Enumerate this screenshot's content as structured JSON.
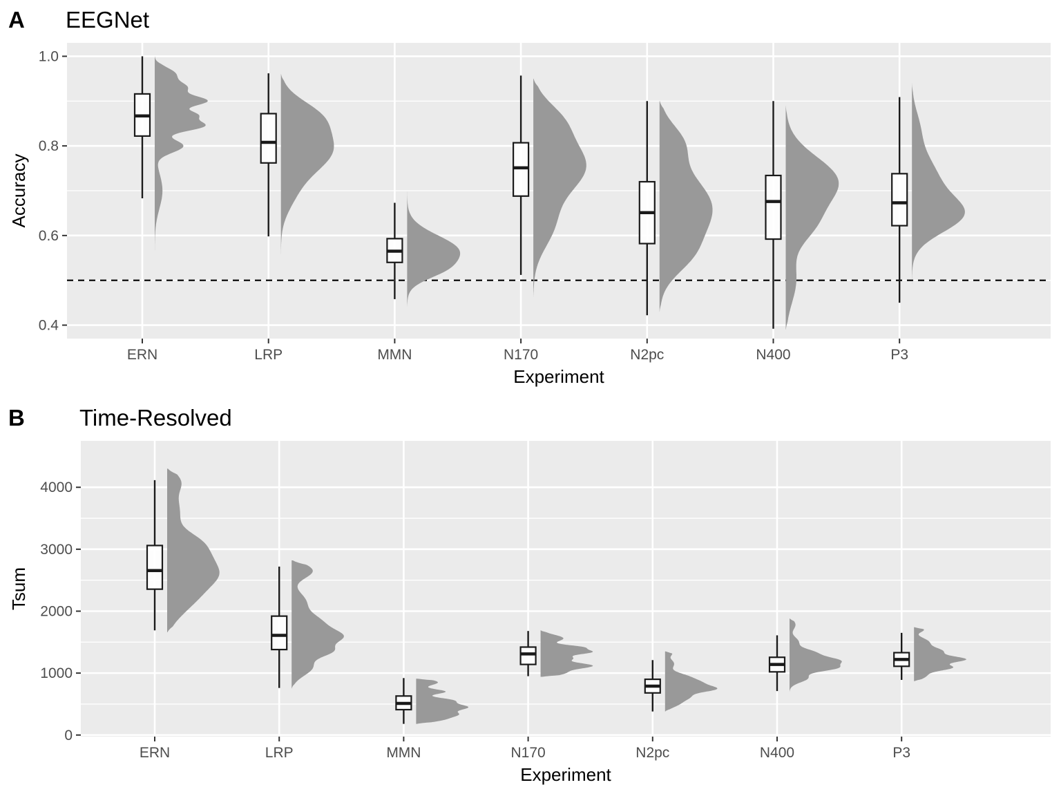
{
  "chart_data": [
    {
      "type": "box",
      "panel_label": "A",
      "title": "EEGNet",
      "xlabel": "Experiment",
      "ylabel": "Accuracy",
      "ylim": [
        0.37,
        1.03
      ],
      "yticks": [
        0.4,
        0.6,
        0.8,
        1.0
      ],
      "ytick_labels": [
        "0.4",
        "0.6",
        "0.8",
        "1.0"
      ],
      "reference_line": {
        "y": 0.5,
        "style": "dashed"
      },
      "grid": true,
      "categories": [
        "ERN",
        "LRP",
        "MMN",
        "N170",
        "N2pc",
        "N400",
        "P3"
      ],
      "boxes": [
        {
          "category": "ERN",
          "min": 0.683,
          "q1": 0.822,
          "median": 0.867,
          "q3": 0.916,
          "max": 1.0
        },
        {
          "category": "LRP",
          "min": 0.598,
          "q1": 0.762,
          "median": 0.808,
          "q3": 0.872,
          "max": 0.962
        },
        {
          "category": "MMN",
          "min": 0.458,
          "q1": 0.54,
          "median": 0.565,
          "q3": 0.593,
          "max": 0.673
        },
        {
          "category": "N170",
          "min": 0.512,
          "q1": 0.688,
          "median": 0.751,
          "q3": 0.807,
          "max": 0.957
        },
        {
          "category": "N2pc",
          "min": 0.422,
          "q1": 0.582,
          "median": 0.651,
          "q3": 0.72,
          "max": 0.9
        },
        {
          "category": "N400",
          "min": 0.392,
          "q1": 0.592,
          "median": 0.676,
          "q3": 0.734,
          "max": 0.9
        },
        {
          "category": "P3",
          "min": 0.45,
          "q1": 0.622,
          "median": 0.673,
          "q3": 0.738,
          "max": 0.909
        }
      ],
      "densities": [
        {
          "category": "ERN",
          "lo": 0.53,
          "hi": 1.0,
          "peaks": [
            [
              0.9,
              0.012,
              1.0
            ],
            [
              0.845,
              0.012,
              0.95
            ],
            [
              0.87,
              0.01,
              0.7
            ],
            [
              0.93,
              0.012,
              0.55
            ],
            [
              0.8,
              0.015,
              0.55
            ],
            [
              0.7,
              0.04,
              0.15
            ],
            [
              0.96,
              0.015,
              0.4
            ]
          ]
        },
        {
          "category": "LRP",
          "lo": 0.55,
          "hi": 0.96,
          "peaks": [
            [
              0.79,
              0.05,
              1.0
            ],
            [
              0.87,
              0.035,
              0.55
            ],
            [
              0.69,
              0.04,
              0.2
            ]
          ]
        },
        {
          "category": "MMN",
          "lo": 0.44,
          "hi": 0.71,
          "peaks": [
            [
              0.565,
              0.035,
              1.0
            ],
            [
              0.52,
              0.02,
              0.3
            ]
          ]
        },
        {
          "category": "N170",
          "lo": 0.46,
          "hi": 0.95,
          "peaks": [
            [
              0.755,
              0.06,
              1.0
            ],
            [
              0.86,
              0.04,
              0.4
            ],
            [
              0.62,
              0.05,
              0.35
            ]
          ]
        },
        {
          "category": "N2pc",
          "lo": 0.43,
          "hi": 0.9,
          "peaks": [
            [
              0.66,
              0.075,
              1.0
            ],
            [
              0.81,
              0.04,
              0.35
            ],
            [
              0.55,
              0.04,
              0.3
            ]
          ]
        },
        {
          "category": "N400",
          "lo": 0.39,
          "hi": 0.89,
          "peaks": [
            [
              0.72,
              0.055,
              1.0
            ],
            [
              0.62,
              0.04,
              0.4
            ],
            [
              0.5,
              0.05,
              0.2
            ]
          ]
        },
        {
          "category": "P3",
          "lo": 0.4,
          "hi": 0.94,
          "peaks": [
            [
              0.645,
              0.04,
              1.0
            ],
            [
              0.73,
              0.05,
              0.5
            ],
            [
              0.84,
              0.04,
              0.15
            ]
          ]
        }
      ]
    },
    {
      "type": "box",
      "panel_label": "B",
      "title": "Time-Resolved",
      "xlabel": "Experiment",
      "ylabel": "Tsum",
      "ylim": [
        -25,
        4750
      ],
      "yticks": [
        0,
        1000,
        2000,
        3000,
        4000
      ],
      "ytick_labels": [
        "0",
        "1000",
        "2000",
        "3000",
        "4000"
      ],
      "grid": true,
      "categories": [
        "ERN",
        "LRP",
        "MMN",
        "N170",
        "N2pc",
        "N400",
        "P3"
      ],
      "boxes": [
        {
          "category": "ERN",
          "min": 1690,
          "q1": 2355,
          "median": 2655,
          "q3": 3060,
          "max": 4115
        },
        {
          "category": "LRP",
          "min": 760,
          "q1": 1380,
          "median": 1610,
          "q3": 1920,
          "max": 2720
        },
        {
          "category": "MMN",
          "min": 180,
          "q1": 410,
          "median": 510,
          "q3": 630,
          "max": 920
        },
        {
          "category": "N170",
          "min": 950,
          "q1": 1140,
          "median": 1310,
          "q3": 1420,
          "max": 1680
        },
        {
          "category": "N2pc",
          "min": 380,
          "q1": 680,
          "median": 790,
          "q3": 900,
          "max": 1210
        },
        {
          "category": "N400",
          "min": 710,
          "q1": 1020,
          "median": 1140,
          "q3": 1255,
          "max": 1610
        },
        {
          "category": "P3",
          "min": 890,
          "q1": 1110,
          "median": 1220,
          "q3": 1330,
          "max": 1650
        }
      ],
      "densities": [
        {
          "category": "ERN",
          "lo": 1660,
          "hi": 4300,
          "peaks": [
            [
              2600,
              180,
              1.0
            ],
            [
              2900,
              180,
              0.85
            ],
            [
              2300,
              200,
              0.7
            ],
            [
              3150,
              150,
              0.5
            ],
            [
              3600,
              300,
              0.35
            ],
            [
              2000,
              200,
              0.3
            ],
            [
              4100,
              150,
              0.3
            ]
          ]
        },
        {
          "category": "LRP",
          "lo": 750,
          "hi": 2820,
          "peaks": [
            [
              1580,
              120,
              1.0
            ],
            [
              1350,
              90,
              0.65
            ],
            [
              1830,
              130,
              0.55
            ],
            [
              1100,
              140,
              0.45
            ],
            [
              2650,
              120,
              0.45
            ],
            [
              2150,
              150,
              0.3
            ]
          ]
        },
        {
          "category": "MMN",
          "lo": 180,
          "hi": 910,
          "peaks": [
            [
              450,
              50,
              1.0
            ],
            [
              330,
              50,
              0.8
            ],
            [
              560,
              45,
              0.7
            ],
            [
              700,
              40,
              0.6
            ],
            [
              850,
              50,
              0.45
            ],
            [
              240,
              40,
              0.4
            ]
          ]
        },
        {
          "category": "N170",
          "lo": 940,
          "hi": 1690,
          "peaks": [
            [
              1120,
              50,
              1.0
            ],
            [
              1340,
              40,
              0.95
            ],
            [
              1420,
              35,
              0.7
            ],
            [
              1240,
              40,
              0.55
            ],
            [
              1560,
              60,
              0.45
            ],
            [
              1000,
              50,
              0.45
            ]
          ]
        },
        {
          "category": "N2pc",
          "lo": 380,
          "hi": 1350,
          "peaks": [
            [
              740,
              50,
              1.0
            ],
            [
              840,
              60,
              0.75
            ],
            [
              620,
              60,
              0.55
            ],
            [
              950,
              60,
              0.45
            ],
            [
              500,
              60,
              0.3
            ],
            [
              1150,
              80,
              0.22
            ],
            [
              1320,
              40,
              0.15
            ]
          ]
        },
        {
          "category": "N400",
          "lo": 690,
          "hi": 1880,
          "peaks": [
            [
              1200,
              60,
              1.0
            ],
            [
              1080,
              55,
              0.9
            ],
            [
              1330,
              60,
              0.5
            ],
            [
              920,
              70,
              0.4
            ],
            [
              1500,
              80,
              0.2
            ],
            [
              1780,
              80,
              0.13
            ]
          ]
        },
        {
          "category": "P3",
          "lo": 870,
          "hi": 1740,
          "peaks": [
            [
              1220,
              50,
              1.0
            ],
            [
              1090,
              50,
              0.75
            ],
            [
              1350,
              60,
              0.55
            ],
            [
              1500,
              70,
              0.3
            ],
            [
              960,
              60,
              0.25
            ],
            [
              1700,
              40,
              0.2
            ]
          ]
        }
      ]
    }
  ]
}
